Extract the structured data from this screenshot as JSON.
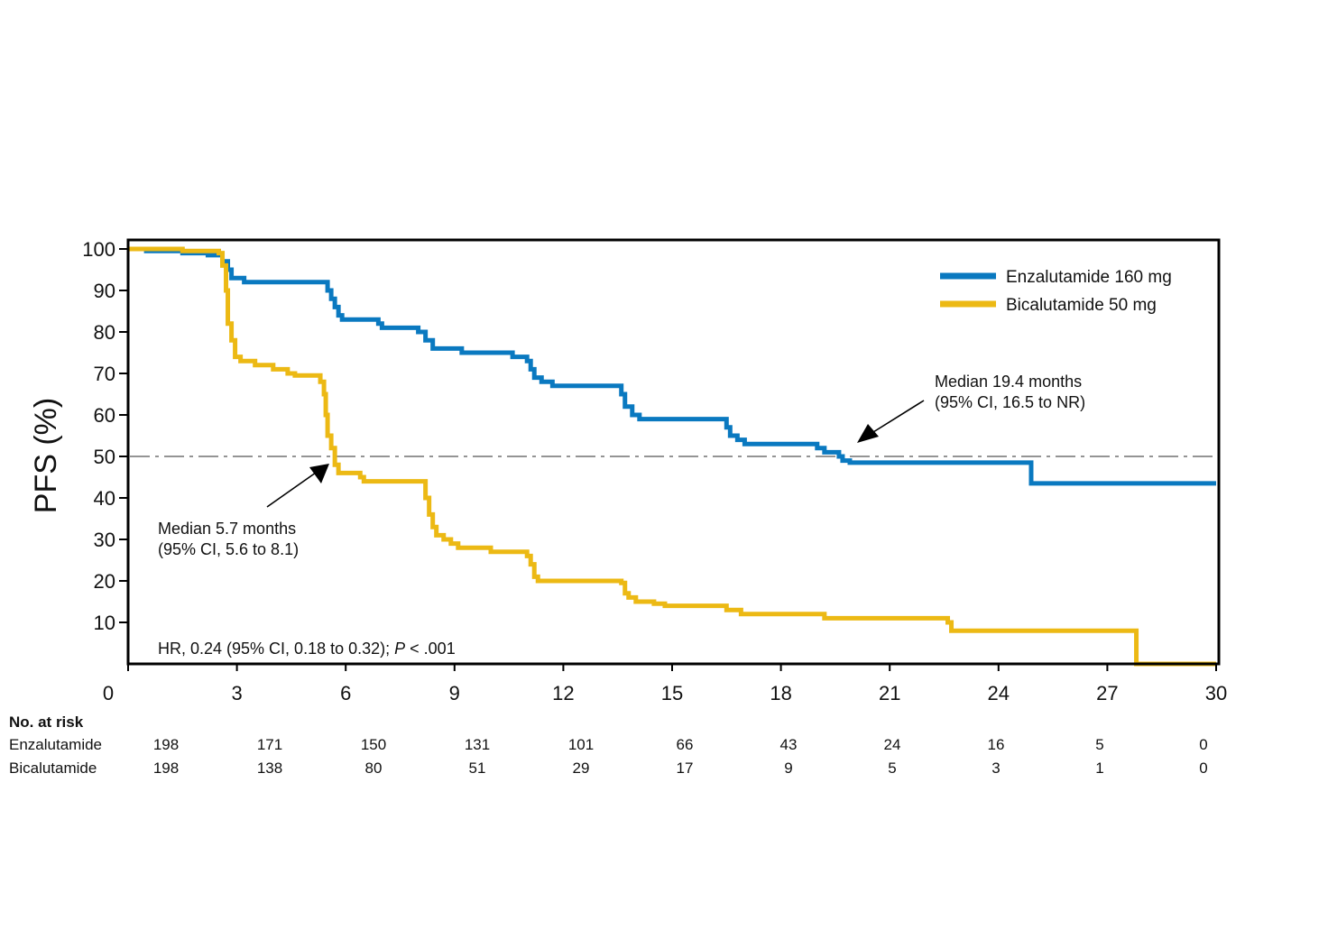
{
  "chart_data": {
    "type": "line",
    "ylabel": "PFS (%)",
    "ylim": [
      0,
      100
    ],
    "xlim": [
      0,
      30
    ],
    "xticks": [
      0,
      3,
      6,
      9,
      12,
      15,
      18,
      21,
      24,
      27,
      30
    ],
    "yticks": [
      10,
      20,
      30,
      40,
      50,
      60,
      70,
      80,
      90,
      100
    ],
    "reference_line_y": 50,
    "legend_placement": "top-right",
    "series": [
      {
        "name": "Enzalutamide 160 mg",
        "color": "#0a79c0",
        "step": true,
        "points": [
          [
            0,
            100
          ],
          [
            0.5,
            99.5
          ],
          [
            1.5,
            99
          ],
          [
            2.2,
            98.5
          ],
          [
            2.6,
            97
          ],
          [
            2.75,
            95
          ],
          [
            2.85,
            93
          ],
          [
            3.2,
            92
          ],
          [
            5.5,
            90
          ],
          [
            5.6,
            88
          ],
          [
            5.7,
            86
          ],
          [
            5.8,
            84
          ],
          [
            5.9,
            83
          ],
          [
            6.9,
            82
          ],
          [
            7.0,
            81
          ],
          [
            8.0,
            80
          ],
          [
            8.2,
            78
          ],
          [
            8.4,
            76
          ],
          [
            9.2,
            75
          ],
          [
            10.6,
            74
          ],
          [
            11.0,
            73
          ],
          [
            11.1,
            71
          ],
          [
            11.2,
            69
          ],
          [
            11.4,
            68
          ],
          [
            11.7,
            67
          ],
          [
            13.6,
            65
          ],
          [
            13.7,
            62
          ],
          [
            13.9,
            60
          ],
          [
            14.1,
            59
          ],
          [
            15.7,
            59
          ],
          [
            16.5,
            57
          ],
          [
            16.6,
            55
          ],
          [
            16.8,
            54
          ],
          [
            17.0,
            53
          ],
          [
            18.5,
            53
          ],
          [
            19.0,
            52
          ],
          [
            19.2,
            51
          ],
          [
            19.6,
            50
          ],
          [
            19.7,
            49
          ],
          [
            19.9,
            48.5
          ],
          [
            24.9,
            43.5
          ],
          [
            30,
            43.5
          ]
        ]
      },
      {
        "name": "Bicalutamide 50 mg",
        "color": "#ecb914",
        "step": true,
        "points": [
          [
            0,
            100
          ],
          [
            1.5,
            99.5
          ],
          [
            2.5,
            99
          ],
          [
            2.6,
            96
          ],
          [
            2.7,
            90
          ],
          [
            2.75,
            82
          ],
          [
            2.85,
            78
          ],
          [
            2.95,
            74
          ],
          [
            3.1,
            73
          ],
          [
            3.5,
            72
          ],
          [
            4.0,
            71
          ],
          [
            4.4,
            70
          ],
          [
            4.6,
            69.5
          ],
          [
            5.1,
            69.5
          ],
          [
            5.3,
            68
          ],
          [
            5.4,
            65
          ],
          [
            5.45,
            60
          ],
          [
            5.5,
            55
          ],
          [
            5.6,
            52
          ],
          [
            5.7,
            48
          ],
          [
            5.8,
            46
          ],
          [
            6.4,
            45
          ],
          [
            6.5,
            44
          ],
          [
            8.0,
            44
          ],
          [
            8.2,
            40
          ],
          [
            8.3,
            36
          ],
          [
            8.4,
            33
          ],
          [
            8.5,
            31
          ],
          [
            8.7,
            30
          ],
          [
            8.9,
            29
          ],
          [
            9.1,
            28
          ],
          [
            10.0,
            27
          ],
          [
            11.0,
            26
          ],
          [
            11.1,
            24
          ],
          [
            11.2,
            21
          ],
          [
            11.3,
            20
          ],
          [
            13.6,
            19.5
          ],
          [
            13.7,
            17
          ],
          [
            13.8,
            16
          ],
          [
            14.0,
            15
          ],
          [
            14.5,
            14.5
          ],
          [
            14.8,
            14
          ],
          [
            16.5,
            13
          ],
          [
            16.9,
            12
          ],
          [
            19.2,
            11
          ],
          [
            22.6,
            10
          ],
          [
            22.7,
            8
          ],
          [
            27.7,
            8
          ],
          [
            27.8,
            0
          ],
          [
            30,
            0
          ]
        ]
      }
    ],
    "annotations": [
      {
        "lines": [
          "Median 19.4 months",
          "(95% CI, 16.5 to NR)"
        ],
        "points_to": [
          19.4,
          50
        ]
      },
      {
        "lines": [
          "Median 5.7 months",
          "(95% CI, 5.6 to 8.1)"
        ],
        "points_to": [
          5.7,
          50
        ]
      }
    ],
    "stat_text": {
      "prefix": "HR, 0.24 (95% CI, 0.18 to 0.32); ",
      "italic": "P",
      "suffix": " < .001"
    }
  },
  "risk_table": {
    "title": "No. at risk",
    "times": [
      0,
      3,
      6,
      9,
      12,
      15,
      18,
      21,
      24,
      27,
      30
    ],
    "rows": [
      {
        "label": "Enzalutamide",
        "values": [
          "198",
          "171",
          "150",
          "131",
          "101",
          "66",
          "43",
          "24",
          "16",
          "5",
          "0"
        ]
      },
      {
        "label": "Bicalutamide",
        "values": [
          "198",
          "138",
          "80",
          "51",
          "29",
          "17",
          "9",
          "5",
          "3",
          "1",
          "0"
        ]
      }
    ]
  }
}
